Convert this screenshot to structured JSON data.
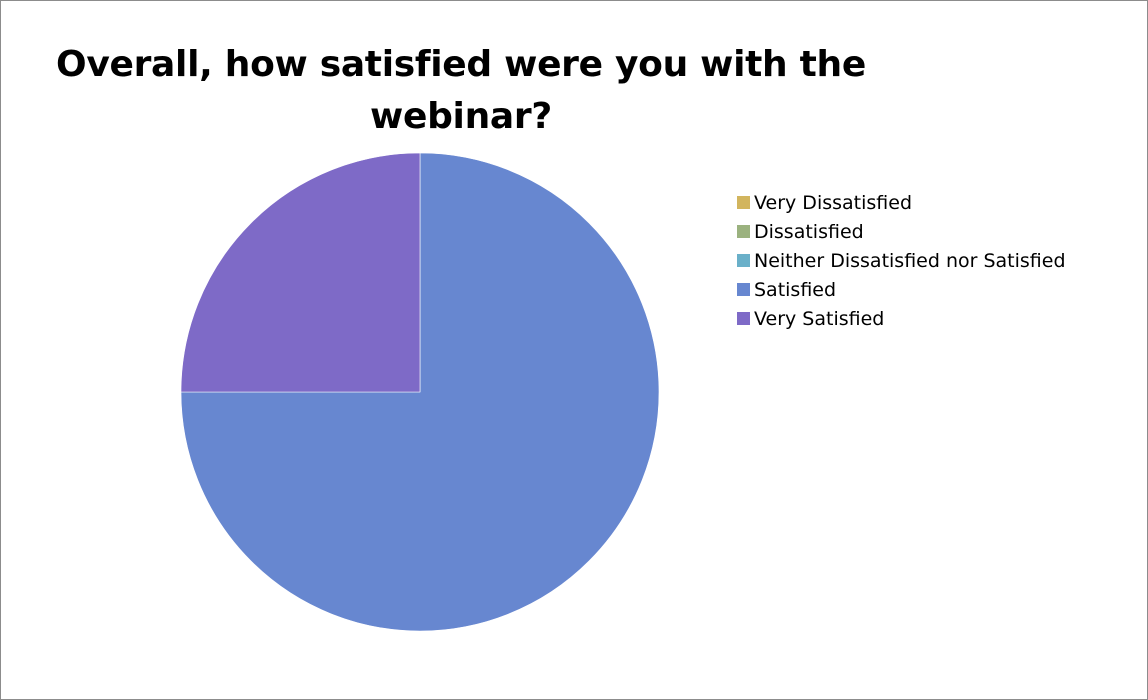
{
  "chart_data": {
    "type": "pie",
    "title": "Overall, how satisfied were you with the webinar?",
    "title_lines": [
      "Overall, how satisfied were you with the",
      "webinar?"
    ],
    "categories": [
      "Very Dissatisfied",
      "Dissatisfied",
      "Neither Dissatisfied nor Satisfied",
      "Satisfied",
      "Very Satisfied"
    ],
    "values": [
      0,
      0,
      0,
      75,
      25
    ],
    "colors": [
      "#d2b55e",
      "#9bb27f",
      "#6ab0c9",
      "#6787d0",
      "#7e6ac7"
    ],
    "legend_position": "right",
    "start_angle_deg": 0,
    "direction": "clockwise"
  }
}
